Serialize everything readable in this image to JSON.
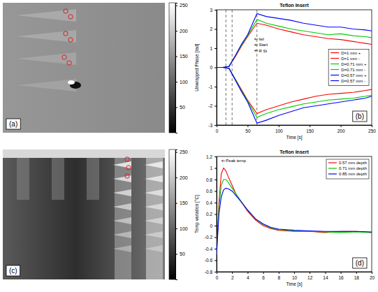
{
  "chart_data": [
    {
      "type": "image",
      "label": "(a)",
      "colorbar_lim": [
        0,
        255
      ],
      "colorbar_ticks": [
        50,
        100,
        150,
        200,
        250
      ]
    },
    {
      "type": "line",
      "label": "(b)",
      "title": "Teflon Insert",
      "x_label": "Time [s]",
      "y_label": "Unwrapped Phase [rad]",
      "xlim": [
        0,
        250
      ],
      "xticks": [
        0,
        50,
        100,
        150,
        200,
        250
      ],
      "ylim": [
        -3,
        3
      ],
      "yticks": [
        -3,
        -2,
        -1,
        0,
        1,
        2,
        3
      ],
      "legend": "right",
      "vlines": [
        15,
        25,
        65
      ],
      "annotations": [
        {
          "text": "Iwl",
          "x": 68,
          "y": 1.4
        },
        {
          "text": "Start",
          "x": 68,
          "y": 1.1
        },
        {
          "text": "R St",
          "x": 68,
          "y": 0.8
        }
      ],
      "x": [
        0,
        10,
        20,
        30,
        40,
        50,
        65,
        80,
        100,
        120,
        140,
        160,
        180,
        200,
        220,
        240,
        250
      ],
      "series": [
        {
          "name": "D=1 mm +",
          "color": "#ff0000",
          "values": [
            0,
            0,
            0.05,
            0.55,
            1.1,
            1.6,
            2.3,
            2.2,
            2.0,
            1.85,
            1.7,
            1.6,
            1.5,
            1.45,
            1.35,
            1.25,
            1.2
          ]
        },
        {
          "name": "D=1 mm -",
          "color": "#ff0000",
          "values": [
            0,
            0,
            -0.05,
            -0.6,
            -1.15,
            -1.7,
            -2.4,
            -2.2,
            -2.0,
            -1.8,
            -1.65,
            -1.5,
            -1.4,
            -1.35,
            -1.3,
            -1.2,
            -1.15
          ]
        },
        {
          "name": "D=0.71 mm +",
          "color": "#00cc00",
          "values": [
            0,
            0,
            0.05,
            0.6,
            1.15,
            1.65,
            2.5,
            2.3,
            2.15,
            2.0,
            1.9,
            1.8,
            1.7,
            1.75,
            1.65,
            1.6,
            1.55
          ]
        },
        {
          "name": "D=0.71 mm -",
          "color": "#00cc00",
          "values": [
            0,
            0,
            -0.05,
            -0.6,
            -1.2,
            -1.75,
            -2.6,
            -2.4,
            -2.2,
            -2.05,
            -1.9,
            -1.8,
            -1.7,
            -1.65,
            -1.6,
            -1.5,
            -1.45
          ]
        },
        {
          "name": "D=0.57 mm +",
          "color": "#0000ff",
          "values": [
            0,
            0,
            0.05,
            0.6,
            1.2,
            1.7,
            2.8,
            2.65,
            2.55,
            2.45,
            2.3,
            2.2,
            2.1,
            2.1,
            2.0,
            1.95,
            1.9
          ]
        },
        {
          "name": "D=0.57 mm -",
          "color": "#0000ff",
          "values": [
            0,
            0,
            -0.05,
            -0.65,
            -1.25,
            -1.8,
            -2.9,
            -2.75,
            -2.5,
            -2.3,
            -2.1,
            -2.0,
            -1.9,
            -1.8,
            -1.7,
            -1.6,
            -1.5
          ]
        }
      ]
    },
    {
      "type": "image",
      "label": "(c)",
      "colorbar_lim": [
        0,
        255
      ],
      "colorbar_ticks": [
        50,
        100,
        150,
        200,
        250
      ]
    },
    {
      "type": "line",
      "label": "(d)",
      "title": "Teflon Insert",
      "x_label": "Time [s]",
      "y_label": "Temp variation [°C]",
      "xlim": [
        0,
        20
      ],
      "xticks": [
        0,
        2,
        4,
        6,
        8,
        10,
        12,
        14,
        16,
        18,
        20
      ],
      "ylim": [
        -0.8,
        1.2
      ],
      "yticks": [
        -0.8,
        -0.6,
        -0.4,
        -0.2,
        0,
        0.2,
        0.4,
        0.6,
        0.8,
        1,
        1.2
      ],
      "legend": "upper right",
      "annotations": [
        {
          "text": "Peak temp",
          "x": 1.2,
          "y": 1.1
        }
      ],
      "x": [
        0,
        0.3,
        0.6,
        0.9,
        1.2,
        1.5,
        2,
        2.5,
        3,
        4,
        5,
        6,
        7,
        8,
        10,
        12,
        14,
        16,
        18,
        20
      ],
      "series": [
        {
          "name": "0.57 mm depth",
          "color": "#ff0000",
          "values": [
            -0.5,
            0.4,
            0.9,
            1.0,
            0.95,
            0.85,
            0.7,
            0.55,
            0.45,
            0.25,
            0.1,
            0.0,
            -0.05,
            -0.08,
            -0.1,
            -0.1,
            -0.12,
            -0.1,
            -0.1,
            -0.12
          ]
        },
        {
          "name": "0.71 mm depth",
          "color": "#00cc00",
          "values": [
            -0.5,
            0.3,
            0.7,
            0.8,
            0.8,
            0.75,
            0.65,
            0.55,
            0.45,
            0.27,
            0.12,
            0.02,
            -0.04,
            -0.07,
            -0.09,
            -0.1,
            -0.11,
            -0.12,
            -0.11,
            -0.12
          ]
        },
        {
          "name": "0.85 mm depth",
          "color": "#0000ff",
          "values": [
            -0.5,
            0.2,
            0.5,
            0.62,
            0.65,
            0.64,
            0.6,
            0.52,
            0.44,
            0.27,
            0.12,
            0.03,
            -0.03,
            -0.06,
            -0.08,
            -0.09,
            -0.1,
            -0.1,
            -0.1,
            -0.11
          ]
        }
      ]
    }
  ]
}
